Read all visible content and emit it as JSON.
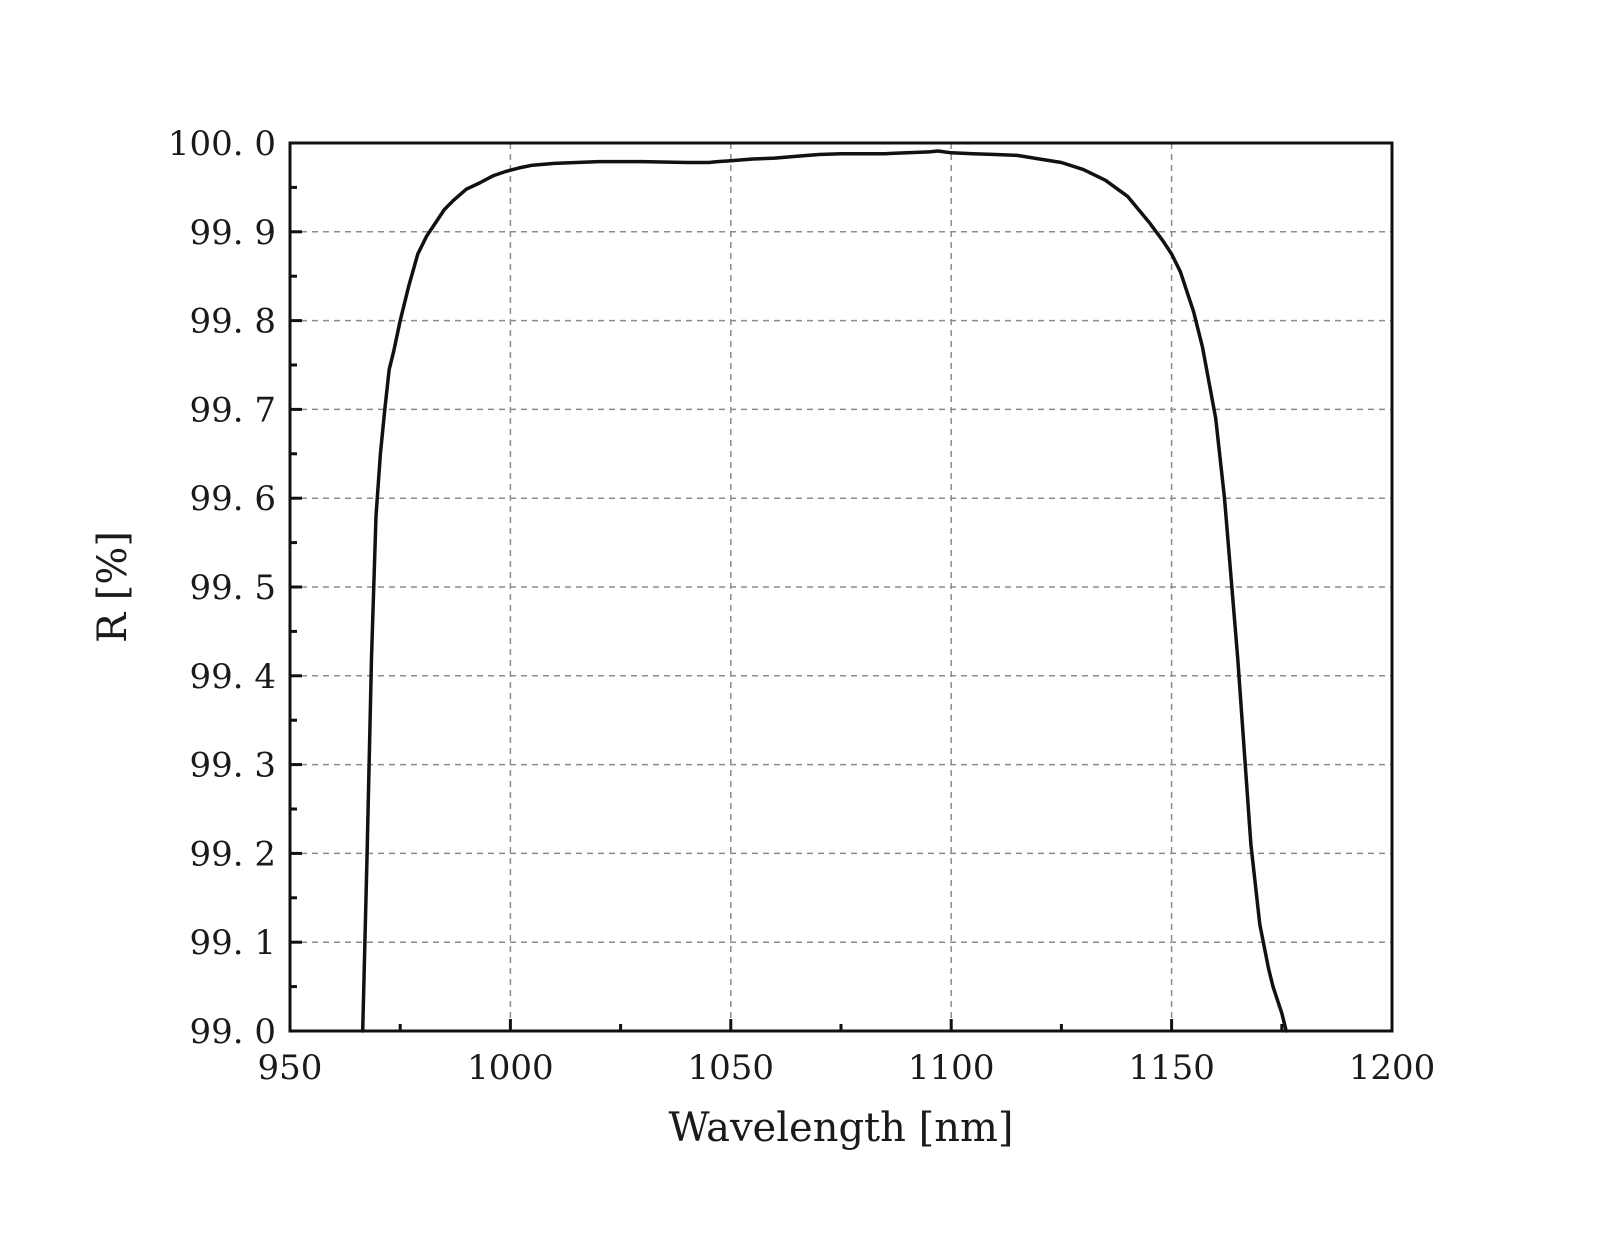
{
  "chart_data": {
    "type": "line",
    "xlabel": "Wavelength [nm]",
    "ylabel": "R [%]",
    "xlim": [
      950,
      1200
    ],
    "ylim": [
      99.0,
      100.0
    ],
    "x_ticks": [
      950,
      1000,
      1050,
      1100,
      1150,
      1200
    ],
    "x_tick_labels": [
      "950",
      "1000",
      "1050",
      "1100",
      "1150",
      "1200"
    ],
    "y_ticks": [
      99.0,
      99.1,
      99.2,
      99.3,
      99.4,
      99.5,
      99.6,
      99.7,
      99.8,
      99.9,
      100.0
    ],
    "y_tick_labels": [
      "99. 0",
      "99. 1",
      "99. 2",
      "99. 3",
      "99. 4",
      "99. 5",
      "99. 6",
      "99. 7",
      "99. 8",
      "99. 9",
      "100. 0"
    ],
    "grid": true,
    "grid_style": "dashed",
    "series": [
      {
        "color": "#111111",
        "x": [
          966.5,
          967.5,
          968.5,
          969.5,
          970.5,
          971.5,
          972.5,
          973.5,
          975,
          977,
          979,
          981,
          983,
          985,
          987,
          990,
          993,
          996,
          999,
          1002,
          1005,
          1010,
          1015,
          1020,
          1025,
          1030,
          1040,
          1045,
          1047,
          1050,
          1055,
          1060,
          1065,
          1070,
          1075,
          1080,
          1085,
          1090,
          1095,
          1097,
          1100,
          1105,
          1110,
          1115,
          1120,
          1125,
          1130,
          1135,
          1140,
          1145,
          1148,
          1150,
          1152,
          1155,
          1157,
          1160,
          1162,
          1165,
          1168,
          1170,
          1172,
          1173,
          1174,
          1175,
          1175.5,
          1176
        ],
        "y": [
          99.0,
          99.2,
          99.42,
          99.58,
          99.65,
          99.7,
          99.745,
          99.765,
          99.8,
          99.84,
          99.875,
          99.895,
          99.91,
          99.925,
          99.935,
          99.948,
          99.955,
          99.963,
          99.968,
          99.972,
          99.975,
          99.977,
          99.978,
          99.979,
          99.979,
          99.979,
          99.978,
          99.978,
          99.979,
          99.98,
          99.982,
          99.983,
          99.985,
          99.987,
          99.988,
          99.988,
          99.988,
          99.989,
          99.99,
          99.991,
          99.989,
          99.988,
          99.987,
          99.986,
          99.982,
          99.978,
          99.97,
          99.958,
          99.94,
          99.91,
          99.89,
          99.875,
          99.855,
          99.81,
          99.77,
          99.69,
          99.6,
          99.42,
          99.21,
          99.12,
          99.07,
          99.05,
          99.035,
          99.02,
          99.01,
          99.0
        ]
      }
    ]
  }
}
